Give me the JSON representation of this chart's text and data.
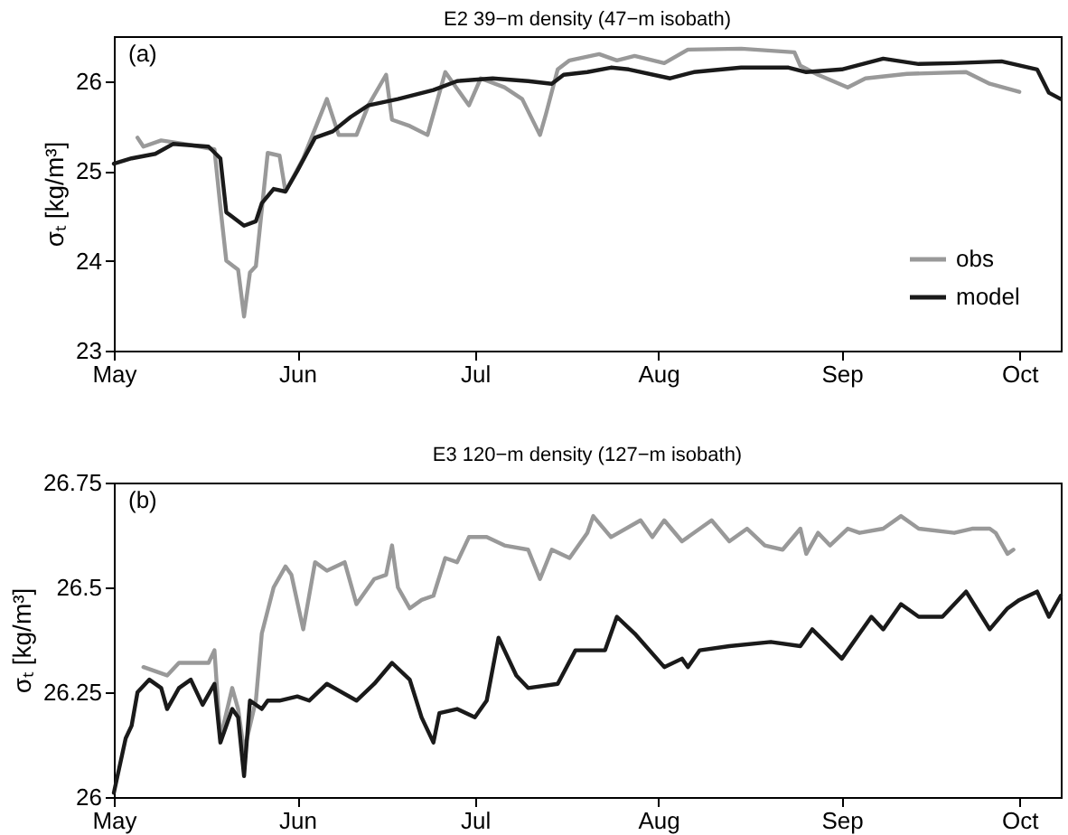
{
  "chart_data": [
    {
      "type": "line",
      "title": "E2 39−m density (47−m isobath)",
      "ylabel": "σₜ [kg/m³]",
      "annotations": [
        "(a)"
      ],
      "legend": "bottom right",
      "line_style": "solid",
      "xlim": [
        "--05-01",
        "--10-08"
      ],
      "xticks": [
        {
          "value": "--05-01",
          "label": "May"
        },
        {
          "value": "--06-01",
          "label": "Jun"
        },
        {
          "value": "--07-01",
          "label": "Jul"
        },
        {
          "value": "--08-01",
          "label": "Aug"
        },
        {
          "value": "--09-01",
          "label": "Sep"
        },
        {
          "value": "--10-01",
          "label": "Oct"
        }
      ],
      "ylim": [
        23,
        26.5
      ],
      "yticks": [
        23,
        24,
        25,
        26
      ],
      "series": [
        {
          "name": "obs",
          "color": "#999999",
          "x": [
            "--05-05",
            "--05-06",
            "--05-09",
            "--05-13",
            "--05-18",
            "--05-19",
            "--05-20",
            "--05-22",
            "--05-23",
            "--05-24",
            "--05-25",
            "--05-27",
            "--05-29",
            "--05-30",
            "--06-02",
            "--06-06",
            "--06-08",
            "--06-11",
            "--06-13",
            "--06-16",
            "--06-17",
            "--06-20",
            "--06-23",
            "--06-26",
            "--06-30",
            "--07-02",
            "--07-06",
            "--07-09",
            "--07-12",
            "--07-13",
            "--07-15",
            "--07-17",
            "--07-22",
            "--07-25",
            "--07-28",
            "--08-02",
            "--08-06",
            "--08-15",
            "--08-24",
            "--08-25",
            "--08-28",
            "--09-02",
            "--09-05",
            "--09-12",
            "--09-22",
            "--09-26",
            "--10-01"
          ],
          "values": [
            25.37,
            25.27,
            25.34,
            25.3,
            25.24,
            24.6,
            24.0,
            23.9,
            23.38,
            23.87,
            23.94,
            25.2,
            25.17,
            24.77,
            25.14,
            25.8,
            25.4,
            25.4,
            25.73,
            26.07,
            25.57,
            25.5,
            25.4,
            26.1,
            25.73,
            26.03,
            25.93,
            25.8,
            25.4,
            25.63,
            26.13,
            26.23,
            26.3,
            26.23,
            26.28,
            26.2,
            26.35,
            26.36,
            26.32,
            26.17,
            26.07,
            25.93,
            26.03,
            26.08,
            26.1,
            25.97,
            25.88
          ]
        },
        {
          "name": "model",
          "color": "#1a1a1a",
          "x": [
            "--05-01",
            "--05-04",
            "--05-08",
            "--05-11",
            "--05-17",
            "--05-19",
            "--05-20",
            "--05-23",
            "--05-25",
            "--05-26",
            "--05-28",
            "--05-30",
            "--06-01",
            "--06-04",
            "--06-07",
            "--06-10",
            "--06-13",
            "--06-18",
            "--06-24",
            "--06-28",
            "--07-04",
            "--07-10",
            "--07-14",
            "--07-16",
            "--07-20",
            "--07-24",
            "--07-27",
            "--08-03",
            "--08-07",
            "--08-15",
            "--08-23",
            "--08-26",
            "--09-01",
            "--09-08",
            "--09-14",
            "--09-20",
            "--09-28",
            "--10-04",
            "--10-06",
            "--10-08"
          ],
          "values": [
            25.08,
            25.14,
            25.19,
            25.3,
            25.27,
            25.14,
            24.54,
            24.39,
            24.44,
            24.64,
            24.8,
            24.77,
            25.0,
            25.37,
            25.44,
            25.6,
            25.73,
            25.8,
            25.9,
            26.0,
            26.03,
            26.0,
            25.97,
            26.07,
            26.1,
            26.15,
            26.13,
            26.03,
            26.1,
            26.15,
            26.15,
            26.1,
            26.13,
            26.25,
            26.19,
            26.2,
            26.22,
            26.13,
            25.87,
            25.8
          ]
        }
      ]
    },
    {
      "type": "line",
      "title": "E3 120−m density (127−m isobath)",
      "ylabel": "σₜ [kg/m³]",
      "annotations": [
        "(b)"
      ],
      "line_style": "solid",
      "xlim": [
        "--05-01",
        "--10-08"
      ],
      "xticks": [
        {
          "value": "--05-01",
          "label": "May"
        },
        {
          "value": "--06-01",
          "label": "Jun"
        },
        {
          "value": "--07-01",
          "label": "Jul"
        },
        {
          "value": "--08-01",
          "label": "Aug"
        },
        {
          "value": "--09-01",
          "label": "Sep"
        },
        {
          "value": "--10-01",
          "label": "Oct"
        }
      ],
      "ylim": [
        26,
        26.75
      ],
      "yticks": [
        26,
        26.25,
        26.5,
        26.75
      ],
      "series": [
        {
          "color": "#999999",
          "x": [
            "--05-06",
            "--05-10",
            "--05-12",
            "--05-17",
            "--05-18",
            "--05-19",
            "--05-21",
            "--05-22",
            "--05-23",
            "--05-25",
            "--05-26",
            "--05-28",
            "--05-30",
            "--05-31",
            "--06-02",
            "--06-04",
            "--06-06",
            "--06-09",
            "--06-11",
            "--06-14",
            "--06-16",
            "--06-17",
            "--06-18",
            "--06-20",
            "--06-22",
            "--06-24",
            "--06-26",
            "--06-28",
            "--06-30",
            "--07-03",
            "--07-06",
            "--07-10",
            "--07-12",
            "--07-14",
            "--07-17",
            "--07-20",
            "--07-21",
            "--07-24",
            "--07-29",
            "--07-31",
            "--08-02",
            "--08-05",
            "--08-10",
            "--08-13",
            "--08-16",
            "--08-19",
            "--08-22",
            "--08-25",
            "--08-26",
            "--08-28",
            "--08-30",
            "--09-02",
            "--09-04",
            "--09-08",
            "--09-11",
            "--09-14",
            "--09-20",
            "--09-23",
            "--09-26",
            "--09-27",
            "--09-29",
            "--09-30"
          ],
          "values": [
            26.31,
            26.29,
            26.32,
            26.32,
            26.35,
            26.14,
            26.26,
            26.21,
            26.11,
            26.23,
            26.39,
            26.5,
            26.55,
            26.53,
            26.4,
            26.56,
            26.54,
            26.56,
            26.46,
            26.52,
            26.53,
            26.6,
            26.5,
            26.45,
            26.47,
            26.48,
            26.57,
            26.56,
            26.62,
            26.62,
            26.6,
            26.59,
            26.52,
            26.59,
            26.57,
            26.63,
            26.67,
            26.62,
            26.66,
            26.62,
            26.66,
            26.61,
            26.66,
            26.61,
            26.64,
            26.6,
            26.59,
            26.64,
            26.58,
            26.63,
            26.6,
            26.64,
            26.63,
            26.64,
            26.67,
            26.64,
            26.63,
            26.64,
            26.64,
            26.63,
            26.58,
            26.59
          ]
        },
        {
          "color": "#1a1a1a",
          "x": [
            "--05-01",
            "--05-03",
            "--05-04",
            "--05-05",
            "--05-07",
            "--05-09",
            "--05-10",
            "--05-12",
            "--05-14",
            "--05-16",
            "--05-18",
            "--05-19",
            "--05-21",
            "--05-22",
            "--05-23",
            "--05-24",
            "--05-26",
            "--05-27",
            "--05-29",
            "--06-01",
            "--06-03",
            "--06-06",
            "--06-11",
            "--06-14",
            "--06-17",
            "--06-20",
            "--06-22",
            "--06-24",
            "--06-25",
            "--06-28",
            "--07-01",
            "--07-03",
            "--07-05",
            "--07-08",
            "--07-10",
            "--07-15",
            "--07-18",
            "--07-21",
            "--07-23",
            "--07-25",
            "--07-28",
            "--08-02",
            "--08-05",
            "--08-06",
            "--08-08",
            "--08-13",
            "--08-20",
            "--08-25",
            "--08-27",
            "--09-01",
            "--09-04",
            "--09-06",
            "--09-08",
            "--09-11",
            "--09-14",
            "--09-18",
            "--09-22",
            "--09-26",
            "--09-29",
            "--10-01",
            "--10-04",
            "--10-06",
            "--10-08"
          ],
          "values": [
            26.01,
            26.14,
            26.17,
            26.25,
            26.28,
            26.26,
            26.21,
            26.26,
            26.28,
            26.22,
            26.27,
            26.13,
            26.21,
            26.19,
            26.05,
            26.23,
            26.21,
            26.23,
            26.23,
            26.24,
            26.23,
            26.27,
            26.23,
            26.27,
            26.32,
            26.28,
            26.19,
            26.13,
            26.2,
            26.21,
            26.19,
            26.23,
            26.38,
            26.29,
            26.26,
            26.27,
            26.35,
            26.35,
            26.35,
            26.43,
            26.39,
            26.31,
            26.33,
            26.31,
            26.35,
            26.36,
            26.37,
            26.36,
            26.4,
            26.33,
            26.39,
            26.43,
            26.4,
            26.46,
            26.43,
            26.43,
            26.49,
            26.4,
            26.45,
            26.47,
            26.49,
            26.43,
            26.48
          ]
        }
      ]
    }
  ]
}
